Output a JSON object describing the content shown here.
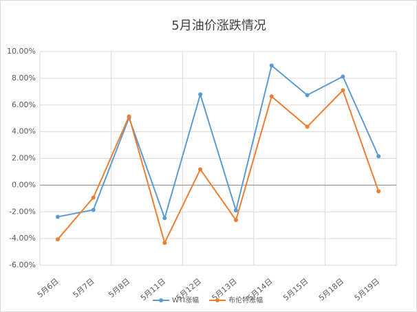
{
  "chart_data": {
    "type": "line",
    "title": "5月油价涨跌情况",
    "categories": [
      "5月6日",
      "5月7日",
      "5月8日",
      "5月11日",
      "5月12日",
      "5月13日",
      "5月14日",
      "5月15日",
      "5月18日",
      "5月19日"
    ],
    "series": [
      {
        "name": "WTI涨幅",
        "color": "#5b9bd5",
        "values": [
          -2.37,
          -1.85,
          5.04,
          -2.47,
          6.79,
          -1.9,
          8.95,
          6.74,
          8.13,
          2.16
        ]
      },
      {
        "name": "布伦特涨幅",
        "color": "#ed7d31",
        "values": [
          -4.06,
          -0.93,
          5.14,
          -4.32,
          1.18,
          -2.62,
          6.64,
          4.37,
          7.1,
          -0.46
        ]
      }
    ],
    "ylim": [
      -6,
      10
    ],
    "yticks": [
      {
        "value": -6,
        "label": "-6.00%"
      },
      {
        "value": -4,
        "label": "-4.00%"
      },
      {
        "value": -2,
        "label": "-2.00%"
      },
      {
        "value": 0,
        "label": "0.00%"
      },
      {
        "value": 2,
        "label": "2.00%"
      },
      {
        "value": 4,
        "label": "4.00%"
      },
      {
        "value": 6,
        "label": "6.00%"
      },
      {
        "value": 8,
        "label": "8.00%"
      },
      {
        "value": 10,
        "label": "10.00%"
      }
    ],
    "grid": true,
    "legend": "bottom"
  }
}
